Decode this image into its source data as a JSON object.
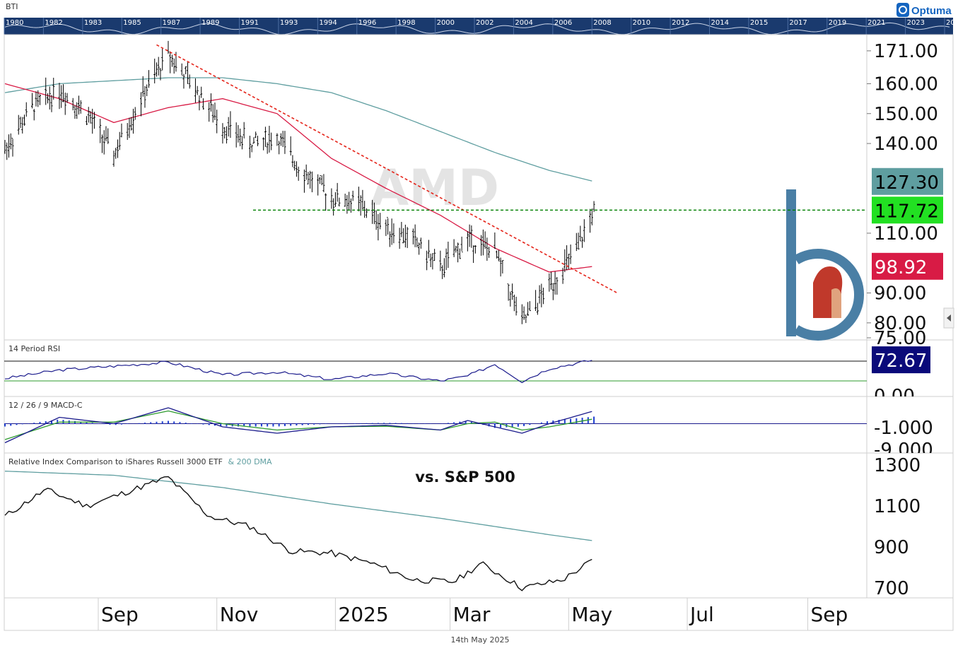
{
  "header": {
    "symbol": "BTI",
    "brand": "Optuma",
    "watermark": "AMD",
    "footer_date": "14th May 2025"
  },
  "overview": {
    "years": [
      "1980",
      "1982",
      "1983",
      "1985",
      "1987",
      "1989",
      "1991",
      "1993",
      "1994",
      "1996",
      "1998",
      "2000",
      "2002",
      "2004",
      "2006",
      "2008",
      "2010",
      "2012",
      "2014",
      "2015",
      "2017",
      "2019",
      "2021",
      "2023",
      "202"
    ]
  },
  "colors": {
    "price": "#000000",
    "ma_50": "#d81b45",
    "ma_200": "#5f9ea0",
    "trendline": "#e5251b",
    "support": "#008000",
    "rsi": "#1a1a8c",
    "macd": "#1a1a8c",
    "signal": "#2e9b2e",
    "histogram": "#1f3fd0",
    "relative": "#111111",
    "relative_ma": "#5f9ea0"
  },
  "chart_data": [
    {
      "panel": "price",
      "type": "line",
      "title": "",
      "y_ticks": [
        "171.00",
        "160.00",
        "150.00",
        "140.00",
        "110.00",
        "90.00",
        "80.00",
        "75.00"
      ],
      "y_partial_tick": "0",
      "ylim": [
        75,
        175
      ],
      "x_labels": [
        "Sep",
        "Nov",
        "2025",
        "Mar",
        "May",
        "Jul",
        "Sep"
      ],
      "series": [
        {
          "name": "",
          "kind": "price",
          "x": [
            "2024-07-15",
            "2024-07-29",
            "2024-08-12",
            "2024-08-26",
            "2024-09-09",
            "2024-09-23",
            "2024-10-07",
            "2024-10-21",
            "2024-11-04",
            "2024-11-18",
            "2024-12-02",
            "2024-12-16",
            "2024-12-30",
            "2025-01-13",
            "2025-01-27",
            "2025-02-10",
            "2025-02-24",
            "2025-03-10",
            "2025-03-24",
            "2025-04-07",
            "2025-04-21",
            "2025-05-05",
            "2025-05-14"
          ],
          "values": [
            138,
            152,
            158,
            150,
            136,
            155,
            170,
            158,
            146,
            140,
            142,
            130,
            122,
            120,
            112,
            108,
            98,
            108,
            104,
            80,
            92,
            104,
            117.72
          ]
        },
        {
          "name": "",
          "kind": "ma50",
          "x": [
            "2024-07-15",
            "2024-08-12",
            "2024-09-09",
            "2024-10-07",
            "2024-11-04",
            "2024-12-02",
            "2024-12-30",
            "2025-01-27",
            "2025-02-24",
            "2025-03-24",
            "2025-04-21",
            "2025-05-14"
          ],
          "values": [
            160,
            155,
            147,
            152,
            155,
            150,
            135,
            125,
            116,
            105,
            97,
            98.92
          ]
        },
        {
          "name": "",
          "kind": "ma200",
          "x": [
            "2024-07-15",
            "2024-08-12",
            "2024-09-09",
            "2024-10-07",
            "2024-11-04",
            "2024-12-02",
            "2024-12-30",
            "2025-01-27",
            "2025-02-24",
            "2025-03-24",
            "2025-04-21",
            "2025-05-14"
          ],
          "values": [
            157,
            160,
            161,
            162,
            162,
            160,
            157,
            151,
            144,
            137,
            131,
            127.3
          ]
        }
      ],
      "price_labels": [
        {
          "value": "127.30",
          "kind": "ma200"
        },
        {
          "value": "117.72",
          "kind": "last"
        },
        {
          "value": "98.92",
          "kind": "ma50"
        }
      ],
      "annotations": {
        "trendline": {
          "x": [
            "2024-10-01",
            "2025-05-26"
          ],
          "values": [
            173,
            90
          ]
        },
        "support_level": 117.72
      }
    },
    {
      "panel": "rsi",
      "type": "line",
      "title": "14 Period RSI",
      "y_ticks": [
        "0.00"
      ],
      "levels": [
        70,
        30
      ],
      "last_label": "72.67",
      "ylim": [
        0,
        100
      ],
      "series": [
        {
          "name": "",
          "x": [
            "2024-07-15",
            "2024-08-12",
            "2024-09-09",
            "2024-10-07",
            "2024-11-04",
            "2024-12-02",
            "2024-12-30",
            "2025-01-27",
            "2025-02-24",
            "2025-03-10",
            "2025-03-24",
            "2025-04-07",
            "2025-04-21",
            "2025-05-14"
          ],
          "values": [
            35,
            52,
            60,
            68,
            42,
            48,
            33,
            45,
            30,
            40,
            64,
            29,
            55,
            72.67
          ]
        }
      ]
    },
    {
      "panel": "macd",
      "type": "line",
      "title": "12 / 26 / 9 MACD-C",
      "y_ticks": [
        "-1.000",
        "-9.000"
      ],
      "baseline": -1.0,
      "series": [
        {
          "name": "",
          "kind": "macd",
          "x": [
            "2024-07-15",
            "2024-08-12",
            "2024-09-09",
            "2024-10-07",
            "2024-11-04",
            "2024-12-02",
            "2024-12-30",
            "2025-01-27",
            "2025-02-24",
            "2025-03-10",
            "2025-03-24",
            "2025-04-07",
            "2025-04-21",
            "2025-05-14"
          ],
          "values": [
            -7,
            1,
            -1,
            4,
            -2,
            -4,
            -2,
            -1.5,
            -3,
            0,
            -2,
            -4,
            -1,
            3
          ]
        },
        {
          "name": "",
          "kind": "signal",
          "x": [
            "2024-07-15",
            "2024-08-12",
            "2024-09-09",
            "2024-10-07",
            "2024-11-04",
            "2024-12-02",
            "2024-12-30",
            "2025-01-27",
            "2025-02-24",
            "2025-03-10",
            "2025-03-24",
            "2025-04-07",
            "2025-04-21",
            "2025-05-14"
          ],
          "values": [
            -6,
            -0.5,
            -0.5,
            3,
            -1,
            -3,
            -2,
            -1.8,
            -3,
            -1,
            -0.5,
            -3,
            -2,
            0.5
          ]
        }
      ]
    },
    {
      "panel": "relative",
      "type": "line",
      "title": "Relative Index Comparison to iShares Russell 3000 ETF",
      "title_suffix": "& 200 DMA",
      "annotation": "vs. S&P 500",
      "y_ticks": [
        "1300",
        "1100",
        "900",
        "700"
      ],
      "ylim": [
        660,
        1340
      ],
      "series": [
        {
          "name": "",
          "kind": "relative",
          "x": [
            "2024-07-15",
            "2024-08-05",
            "2024-08-26",
            "2024-09-16",
            "2024-10-07",
            "2024-10-28",
            "2024-11-18",
            "2024-12-09",
            "2024-12-30",
            "2025-01-20",
            "2025-02-10",
            "2025-03-03",
            "2025-03-17",
            "2025-04-07",
            "2025-04-28",
            "2025-05-14"
          ],
          "values": [
            1050,
            1180,
            1100,
            1170,
            1240,
            1050,
            1000,
            880,
            870,
            820,
            740,
            730,
            820,
            700,
            740,
            840
          ]
        },
        {
          "name": "",
          "kind": "relative_ma",
          "x": [
            "2024-07-15",
            "2024-09-09",
            "2024-11-04",
            "2024-12-30",
            "2025-02-24",
            "2025-04-21",
            "2025-05-14"
          ],
          "values": [
            1270,
            1250,
            1190,
            1110,
            1040,
            960,
            930
          ]
        }
      ]
    }
  ]
}
